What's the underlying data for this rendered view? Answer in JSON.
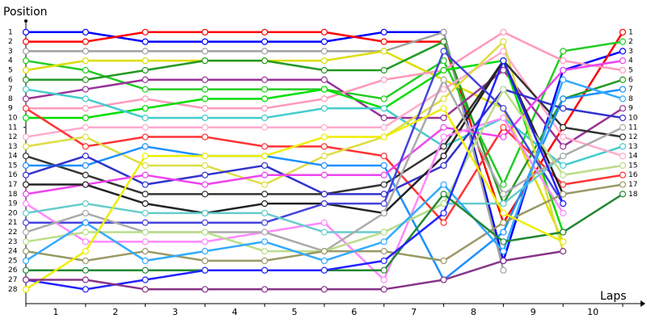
{
  "chart_data": {
    "type": "line",
    "y_label": "Position",
    "x_label": "Laps",
    "x": [
      0,
      1,
      2,
      3,
      4,
      5,
      6,
      7,
      8,
      9,
      10
    ],
    "xlim": [
      0,
      10
    ],
    "xticks": [
      {
        "value": 0.5,
        "label": "1"
      },
      {
        "value": 1.5,
        "label": "2"
      },
      {
        "value": 2.5,
        "label": "3"
      },
      {
        "value": 3.5,
        "label": "4"
      },
      {
        "value": 4.5,
        "label": "5"
      },
      {
        "value": 5.5,
        "label": "6"
      },
      {
        "value": 6.5,
        "label": "7"
      },
      {
        "value": 7.5,
        "label": "8"
      },
      {
        "value": 8.5,
        "label": "9"
      },
      {
        "value": 9.5,
        "label": "10"
      }
    ],
    "ylim": [
      29.5,
      0
    ],
    "yticks": [
      1,
      2,
      3,
      4,
      5,
      6,
      7,
      8,
      9,
      10,
      11,
      12,
      13,
      14,
      15,
      16,
      17,
      18,
      19,
      20,
      21,
      22,
      23,
      24,
      25,
      26,
      27,
      28
    ],
    "y2ticks": [
      1,
      2,
      3,
      4,
      5,
      6,
      7,
      8,
      9,
      10,
      11,
      12,
      13,
      14,
      15,
      16,
      17,
      18
    ],
    "series": [
      {
        "color": "#0000ff",
        "values": [
          1,
          1,
          2,
          2,
          2,
          2,
          1,
          1,
          25,
          5,
          3
        ]
      },
      {
        "color": "#ff0000",
        "values": [
          2,
          2,
          1,
          1,
          1,
          1,
          2,
          2,
          21,
          11,
          1
        ]
      },
      {
        "color": "#a0a0a0",
        "values": [
          3,
          3,
          3,
          3,
          3,
          3,
          3,
          1,
          26,
          null,
          null
        ]
      },
      {
        "color": "#22cc22",
        "values": [
          4,
          5,
          7,
          7,
          7,
          7,
          8,
          4,
          17,
          3,
          2
        ]
      },
      {
        "color": "#dddd00",
        "values": [
          5,
          4,
          4,
          4,
          4,
          4,
          3,
          6,
          9,
          23,
          null
        ]
      },
      {
        "color": "#229922",
        "values": [
          6,
          6,
          5,
          4,
          4,
          5,
          5,
          2,
          19,
          8,
          6
        ]
      },
      {
        "color": "#993399",
        "values": [
          8,
          7,
          6,
          6,
          6,
          6,
          10,
          10,
          5,
          13,
          9
        ]
      },
      {
        "color": "#ff99bb",
        "values": [
          9,
          9,
          8,
          9,
          9,
          8,
          6,
          5,
          1,
          4,
          5
        ]
      },
      {
        "color": "#00dd00",
        "values": [
          10,
          10,
          9,
          8,
          8,
          7,
          9,
          5,
          4,
          22,
          null
        ]
      },
      {
        "color": "#44cccc",
        "values": [
          7,
          8,
          10,
          10,
          10,
          9,
          9,
          13,
          10,
          15,
          13
        ]
      },
      {
        "color": "#ffaacc",
        "values": [
          12,
          11,
          11,
          11,
          11,
          11,
          11,
          7,
          3,
          12,
          14
        ]
      },
      {
        "color": "#ff3333",
        "values": [
          9,
          13,
          12,
          12,
          13,
          13,
          14,
          21,
          11,
          17,
          16
        ]
      },
      {
        "color": "#dddd44",
        "values": [
          13,
          12,
          15,
          15,
          17,
          14,
          12,
          8,
          2,
          24,
          null
        ]
      },
      {
        "color": "#333333",
        "values": [
          14,
          16,
          18,
          18,
          18,
          18,
          17,
          13,
          4,
          11,
          12
        ]
      },
      {
        "color": "#1e90ff",
        "values": [
          15,
          15,
          13,
          14,
          14,
          15,
          15,
          27,
          22,
          8,
          7
        ]
      },
      {
        "color": "#3333cc",
        "values": [
          16,
          14,
          17,
          16,
          15,
          18,
          18,
          15,
          7,
          9,
          10
        ]
      },
      {
        "color": "#ee44ee",
        "values": [
          18,
          17,
          16,
          17,
          16,
          16,
          16,
          11,
          12,
          5,
          4
        ]
      },
      {
        "color": "#222222",
        "values": [
          17,
          17,
          19,
          20,
          19,
          19,
          20,
          14,
          4,
          18,
          null
        ]
      },
      {
        "color": "#4444dd",
        "values": [
          21,
          21,
          21,
          21,
          21,
          19,
          19,
          3,
          9,
          19,
          null
        ]
      },
      {
        "color": "#ff88ff",
        "values": [
          19,
          23,
          23,
          23,
          22,
          21,
          27,
          12,
          10,
          20,
          null
        ]
      },
      {
        "color": "#66cccc",
        "values": [
          20,
          19,
          20,
          20,
          20,
          22,
          22,
          19,
          19,
          14,
          null
        ]
      },
      {
        "color": "#aaaaaa",
        "values": [
          22,
          20,
          22,
          22,
          22,
          24,
          20,
          6,
          18,
          14,
          11
        ]
      },
      {
        "color": "#bbdd88",
        "values": [
          23,
          22,
          22,
          22,
          24,
          24,
          22,
          19,
          7,
          16,
          15
        ]
      },
      {
        "color": "#999966",
        "values": [
          24,
          25,
          24,
          25,
          25,
          24,
          24,
          25,
          21,
          18,
          17
        ]
      },
      {
        "color": "#33aaff",
        "values": [
          25,
          21,
          25,
          24,
          23,
          25,
          23,
          17,
          24,
          6,
          8
        ]
      },
      {
        "color": "#228833",
        "values": [
          26,
          26,
          26,
          26,
          26,
          26,
          26,
          18,
          23,
          22,
          18
        ]
      },
      {
        "color": "#2222ff",
        "values": [
          27,
          28,
          27,
          26,
          26,
          26,
          25,
          20,
          4,
          19,
          null
        ]
      },
      {
        "color": "#eeee00",
        "values": [
          28,
          24,
          14,
          14,
          14,
          12,
          12,
          9,
          20,
          23,
          null
        ]
      },
      {
        "color": "#883388",
        "values": [
          27,
          27,
          28,
          28,
          28,
          28,
          28,
          27,
          25,
          24,
          null
        ]
      }
    ]
  }
}
